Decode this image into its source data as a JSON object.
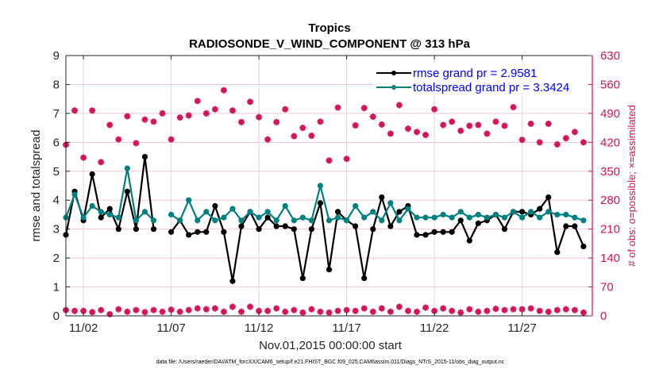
{
  "chart_data": {
    "type": "line",
    "title": "Tropics",
    "subtitle": "RADIOSONDE_V_WIND_COMPONENT @ 313 hPa",
    "xlabel": "Nov.01,2015 00:00:00 start",
    "ylabel": "rmse and totalspread",
    "y2label": "# of obs: o=possible; ×=assimilated",
    "footnote": "data file: /Users/raeder/DAI/ATM_forcXX/CAM6_setup/f.e21.FHIST_BGC.f09_025.CAM6assim.011/Diags_NTrS_2015-11/obs_diag_output.nc",
    "xlim_days": [
      0,
      30
    ],
    "x_tick_labels": [
      "11/02",
      "11/07",
      "11/12",
      "11/17",
      "11/22",
      "11/27"
    ],
    "x_tick_days": [
      1,
      6,
      11,
      16,
      21,
      26
    ],
    "ylim": [
      0,
      9
    ],
    "y_ticks": [
      0,
      1,
      2,
      3,
      4,
      5,
      6,
      7,
      8,
      9
    ],
    "y2lim": [
      0,
      630
    ],
    "y2_ticks": [
      0,
      70,
      140,
      210,
      280,
      350,
      420,
      490,
      560,
      630
    ],
    "grid": true,
    "legend_position": "top-right",
    "colors": {
      "rmse": "#000000",
      "totalspread": "#008080",
      "obs": "#d4145a",
      "grid_vertical": "#d9d9d9",
      "grid_horizontal": "#f2c6d6"
    },
    "x_days": [
      0,
      0.5,
      1,
      1.5,
      2,
      2.5,
      3,
      3.5,
      4,
      4.5,
      5,
      5.5,
      6,
      6.5,
      7,
      7.5,
      8,
      8.5,
      9,
      9.5,
      10,
      10.5,
      11,
      11.5,
      12,
      12.5,
      13,
      13.5,
      14,
      14.5,
      15,
      15.5,
      16,
      16.5,
      17,
      17.5,
      18,
      18.5,
      19,
      19.5,
      20,
      20.5,
      21,
      21.5,
      22,
      22.5,
      23,
      23.5,
      24,
      24.5,
      25,
      25.5,
      26,
      26.5,
      27,
      27.5,
      28,
      28.5,
      29,
      29.5
    ],
    "series": [
      {
        "name": "rmse grand pr = 2.9581",
        "axis": "left",
        "values": [
          2.8,
          4.3,
          3.3,
          4.9,
          3.4,
          3.7,
          3.0,
          4.3,
          3.0,
          5.5,
          3.0,
          null,
          2.9,
          3.3,
          2.8,
          2.9,
          2.9,
          3.8,
          2.9,
          1.2,
          3.1,
          3.6,
          3.0,
          3.4,
          3.1,
          3.1,
          3.0,
          1.3,
          3.0,
          3.9,
          1.6,
          3.6,
          3.3,
          3.1,
          1.3,
          3.0,
          4.1,
          3.1,
          3.6,
          3.8,
          2.8,
          2.8,
          2.9,
          2.9,
          2.9,
          3.3,
          2.6,
          3.2,
          3.3,
          3.5,
          3.0,
          3.6,
          3.6,
          3.5,
          3.7,
          4.1,
          2.2,
          3.1,
          3.1,
          2.4
        ],
        "values_alt_note": "estimated from pixels"
      },
      {
        "name": "totalspread grand pr = 3.3424",
        "axis": "left",
        "values": [
          3.4,
          4.2,
          3.4,
          3.8,
          3.6,
          3.5,
          3.4,
          5.1,
          3.3,
          3.6,
          3.3,
          null,
          3.5,
          3.3,
          4.0,
          3.3,
          3.6,
          3.3,
          3.4,
          3.7,
          3.3,
          3.6,
          3.4,
          3.6,
          3.3,
          3.8,
          3.3,
          3.4,
          3.3,
          4.5,
          3.3,
          3.4,
          3.3,
          3.8,
          3.4,
          3.6,
          3.3,
          3.9,
          3.3,
          3.7,
          3.4,
          3.4,
          3.4,
          3.5,
          3.4,
          3.6,
          3.4,
          3.5,
          3.4,
          3.5,
          3.4,
          3.6,
          3.4,
          3.6,
          3.4,
          3.6,
          3.5,
          3.5,
          3.4,
          3.3
        ]
      },
      {
        "name": "obs possible/assimilated (upper)",
        "axis": "right",
        "marker": "asterisk",
        "values": [
          414,
          497,
          383,
          497,
          372,
          462,
          427,
          483,
          418,
          475,
          470,
          490,
          427,
          480,
          485,
          520,
          490,
          500,
          546,
          497,
          469,
          518,
          481,
          427,
          469,
          500,
          435,
          455,
          436,
          470,
          376,
          504,
          380,
          461,
          503,
          482,
          463,
          441,
          510,
          453,
          445,
          438,
          500,
          462,
          470,
          448,
          460,
          462,
          441,
          470,
          460,
          505,
          426,
          465,
          420,
          465,
          415,
          430,
          445,
          420
        ]
      },
      {
        "name": "obs possible/assimilated (lower)",
        "axis": "right",
        "marker": "asterisk",
        "values": [
          14,
          12,
          12,
          9,
          14,
          4,
          16,
          10,
          14,
          9,
          14,
          10,
          15,
          10,
          14,
          18,
          16,
          18,
          10,
          22,
          10,
          22,
          12,
          12,
          18,
          10,
          14,
          8,
          16,
          10,
          8,
          12,
          14,
          12,
          18,
          10,
          18,
          10,
          22,
          12,
          10,
          20,
          12,
          18,
          12,
          8,
          16,
          10,
          12,
          17,
          14,
          16,
          16,
          18,
          12,
          10,
          14,
          16,
          14,
          8
        ]
      }
    ]
  }
}
